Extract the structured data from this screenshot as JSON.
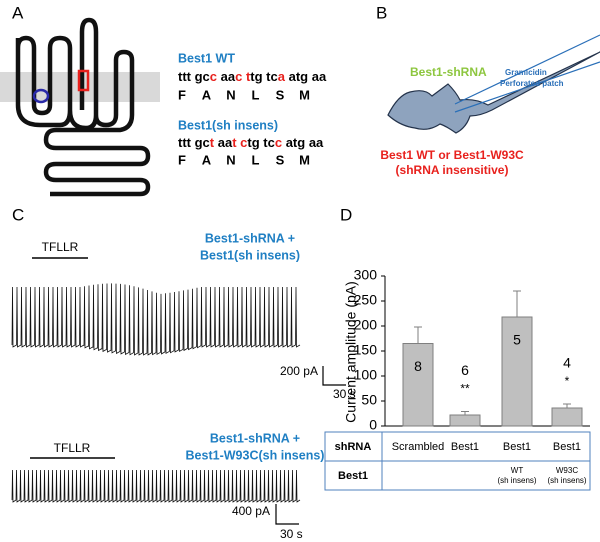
{
  "panel_labels": [
    "A",
    "B",
    "C",
    "D"
  ],
  "panel_a": {
    "wt": {
      "title": "Best1 WT",
      "segments": [
        "ttt gc",
        "c",
        " aa",
        "c",
        " ",
        "t",
        "tg tc",
        "a",
        " atg aa"
      ],
      "aa": [
        "F",
        "A",
        "N",
        "L",
        "S",
        "M"
      ]
    },
    "mut": {
      "title": "Best1(sh insens)",
      "segments": [
        "ttt gc",
        "t",
        " aa",
        "t",
        " ",
        "c",
        "tg tc",
        "c",
        " atg aa"
      ],
      "aa": [
        "F",
        "A",
        "N",
        "L",
        "S",
        "M"
      ]
    },
    "highlight": [
      1,
      3,
      5,
      7
    ],
    "highlight_color": "#e8211d",
    "title_color": "#1f7fc3"
  },
  "panel_b": {
    "construct": "Best1-shRNA",
    "pipette": [
      "Gramicidin",
      "Perforated patch"
    ],
    "rescue": [
      "Best1 WT or Best1-W93C",
      "(shRNA insensitive)"
    ]
  },
  "panel_c": {
    "top": {
      "stimulus": "TFLLR",
      "label": [
        "Best1-shRNA +",
        "Best1(sh insens)"
      ],
      "scale_y": "200 pA",
      "scale_x": "30 s"
    },
    "bottom": {
      "stimulus": "TFLLR",
      "label": [
        "Best1-shRNA +",
        "Best1-W93C(sh insens)"
      ],
      "scale_y": "400 pA",
      "scale_x": "30 s"
    }
  },
  "chart_data": {
    "type": "bar",
    "y_label": "Current amplitude (pA)",
    "categories": [
      "Scrambled",
      "Best1",
      "Best1",
      "Best1"
    ],
    "values": [
      165,
      22,
      218,
      36
    ],
    "errors": [
      33,
      7,
      52,
      8
    ],
    "n_labels": [
      "8",
      "6",
      "5",
      "4"
    ],
    "significance": [
      null,
      "**",
      null,
      "*"
    ],
    "color": "#bfbfbf",
    "ylim": [
      0,
      300
    ],
    "yticks": [
      0,
      50,
      100,
      150,
      200,
      250,
      300
    ],
    "table": {
      "row_labels": [
        "shRNA",
        "Best1"
      ],
      "best1_row": [
        null,
        null,
        [
          "WT",
          "(sh insens)"
        ],
        [
          "W93C",
          "(sh insens)"
        ]
      ]
    }
  }
}
